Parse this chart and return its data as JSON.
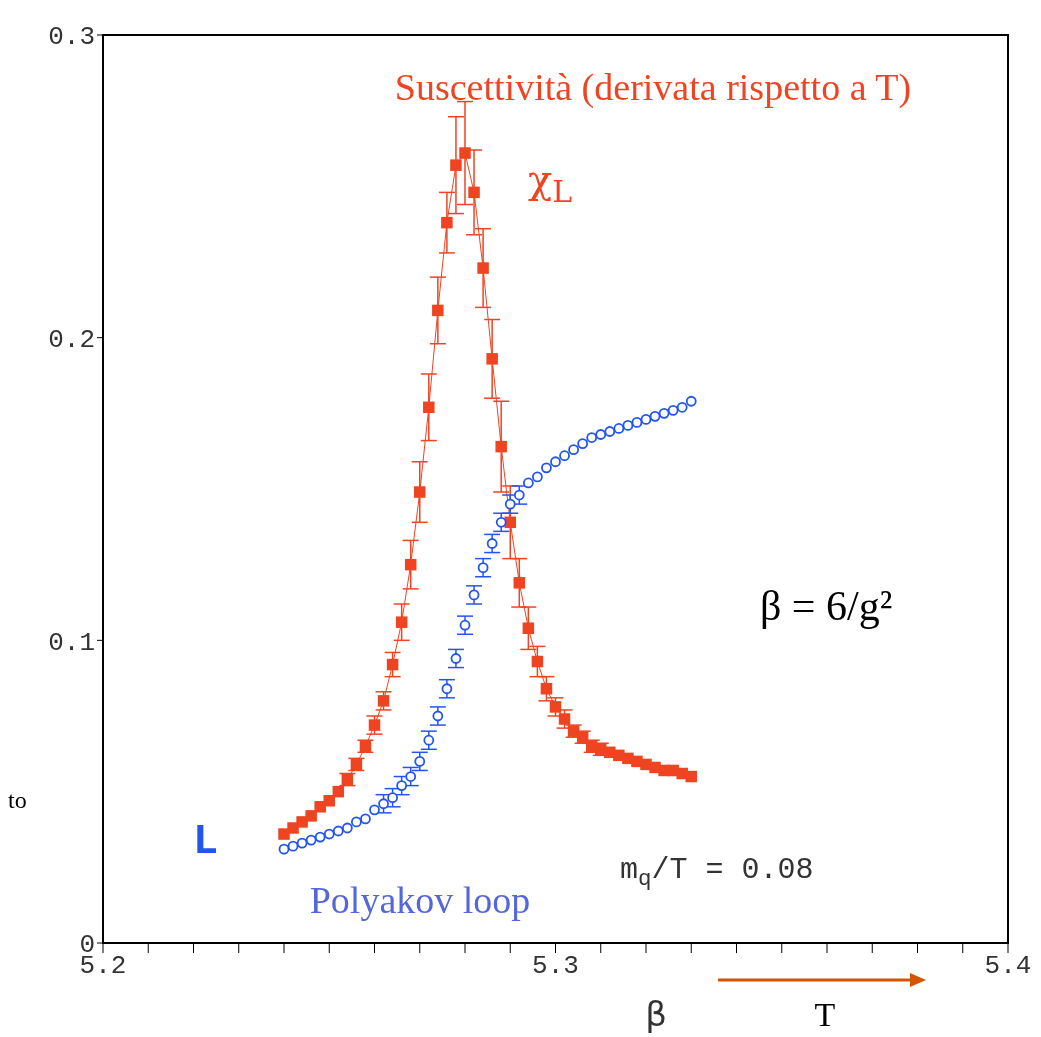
{
  "chart_data": {
    "type": "line",
    "xlabel": "β",
    "annotations": [
      "Suscettività (derivata rispetto a T)",
      "Polyakov loop",
      "m$_{q}$/T = 0.08",
      "β = 6/g²",
      "T",
      "to"
    ],
    "x": [
      5.24,
      5.242,
      5.244,
      5.246,
      5.248,
      5.25,
      5.252,
      5.254,
      5.256,
      5.258,
      5.26,
      5.262,
      5.264,
      5.266,
      5.268,
      5.27,
      5.272,
      5.274,
      5.276,
      5.278,
      5.28,
      5.282,
      5.284,
      5.286,
      5.288,
      5.29,
      5.292,
      5.294,
      5.296,
      5.298,
      5.3,
      5.302,
      5.304,
      5.306,
      5.308,
      5.31,
      5.312,
      5.314,
      5.316,
      5.318,
      5.32,
      5.322,
      5.324,
      5.326,
      5.328,
      5.33
    ],
    "series": [
      {
        "name": "χ$_{L}$",
        "marker": "square",
        "color": "#ee4422",
        "values": [
          0.036,
          0.038,
          0.04,
          0.042,
          0.045,
          0.047,
          0.05,
          0.054,
          0.059,
          0.065,
          0.072,
          0.08,
          0.092,
          0.106,
          0.125,
          0.149,
          0.177,
          0.209,
          0.238,
          0.257,
          0.261,
          0.248,
          0.223,
          0.193,
          0.164,
          0.139,
          0.119,
          0.104,
          0.093,
          0.084,
          0.078,
          0.074,
          0.07,
          0.068,
          0.065,
          0.064,
          0.063,
          0.062,
          0.061,
          0.06,
          0.059,
          0.058,
          0.057,
          0.057,
          0.056,
          0.055
        ],
        "errors": [
          null,
          null,
          null,
          null,
          null,
          null,
          null,
          0.002,
          0.002,
          0.002,
          0.003,
          0.003,
          0.004,
          0.006,
          0.008,
          0.01,
          0.011,
          0.011,
          0.01,
          0.016,
          0.017,
          0.014,
          0.013,
          0.013,
          0.015,
          0.012,
          0.008,
          0.007,
          0.005,
          0.004,
          0.003,
          0.003,
          0.002,
          0.002,
          0.002,
          0.002,
          null,
          null,
          null,
          null,
          null,
          null,
          null,
          null,
          null,
          null
        ]
      },
      {
        "name": "L",
        "type": "scatter",
        "marker": "circle",
        "color": "#2255ee",
        "values": [
          0.031,
          0.032,
          0.033,
          0.034,
          0.035,
          0.036,
          0.037,
          0.038,
          0.04,
          0.041,
          0.044,
          0.046,
          0.048,
          0.052,
          0.055,
          0.06,
          0.067,
          0.075,
          0.084,
          0.094,
          0.105,
          0.115,
          0.124,
          0.132,
          0.139,
          0.145,
          0.148,
          0.152,
          0.154,
          0.157,
          0.159,
          0.161,
          0.163,
          0.165,
          0.167,
          0.168,
          0.169,
          0.17,
          0.171,
          0.172,
          0.173,
          0.174,
          0.175,
          0.176,
          0.177,
          0.179
        ],
        "errors": [
          null,
          null,
          null,
          null,
          null,
          null,
          null,
          null,
          null,
          null,
          null,
          0.003,
          0.003,
          0.003,
          0.003,
          0.003,
          0.003,
          0.003,
          0.003,
          0.003,
          0.003,
          0.003,
          0.003,
          0.003,
          0.003,
          0.003,
          0.003,
          null,
          null,
          null,
          null,
          null,
          null,
          null,
          null,
          null,
          null,
          null,
          null,
          null,
          null,
          null,
          null,
          null,
          null,
          null
        ]
      }
    ],
    "xlim": [
      5.2,
      5.4
    ],
    "xticks": [
      5.2,
      {
        "value": 5.21,
        "label": null
      },
      {
        "value": 5.22,
        "label": null
      },
      {
        "value": 5.23,
        "label": null
      },
      {
        "value": 5.24,
        "label": null
      },
      {
        "value": 5.25,
        "label": null
      },
      {
        "value": 5.26,
        "label": null
      },
      {
        "value": 5.27,
        "label": null
      },
      {
        "value": 5.28,
        "label": null
      },
      {
        "value": 5.29,
        "label": null
      },
      5.3,
      {
        "value": 5.31,
        "label": null
      },
      {
        "value": 5.32,
        "label": null
      },
      {
        "value": 5.33,
        "label": null
      },
      {
        "value": 5.34,
        "label": null
      },
      {
        "value": 5.35,
        "label": null
      },
      {
        "value": 5.36,
        "label": null
      },
      {
        "value": 5.37,
        "label": null
      },
      {
        "value": 5.38,
        "label": null
      },
      {
        "value": 5.39,
        "label": null
      },
      5.4
    ],
    "ylim": [
      0,
      0.3
    ],
    "yticks": [
      0,
      0.1,
      0.2,
      0.3
    ]
  }
}
